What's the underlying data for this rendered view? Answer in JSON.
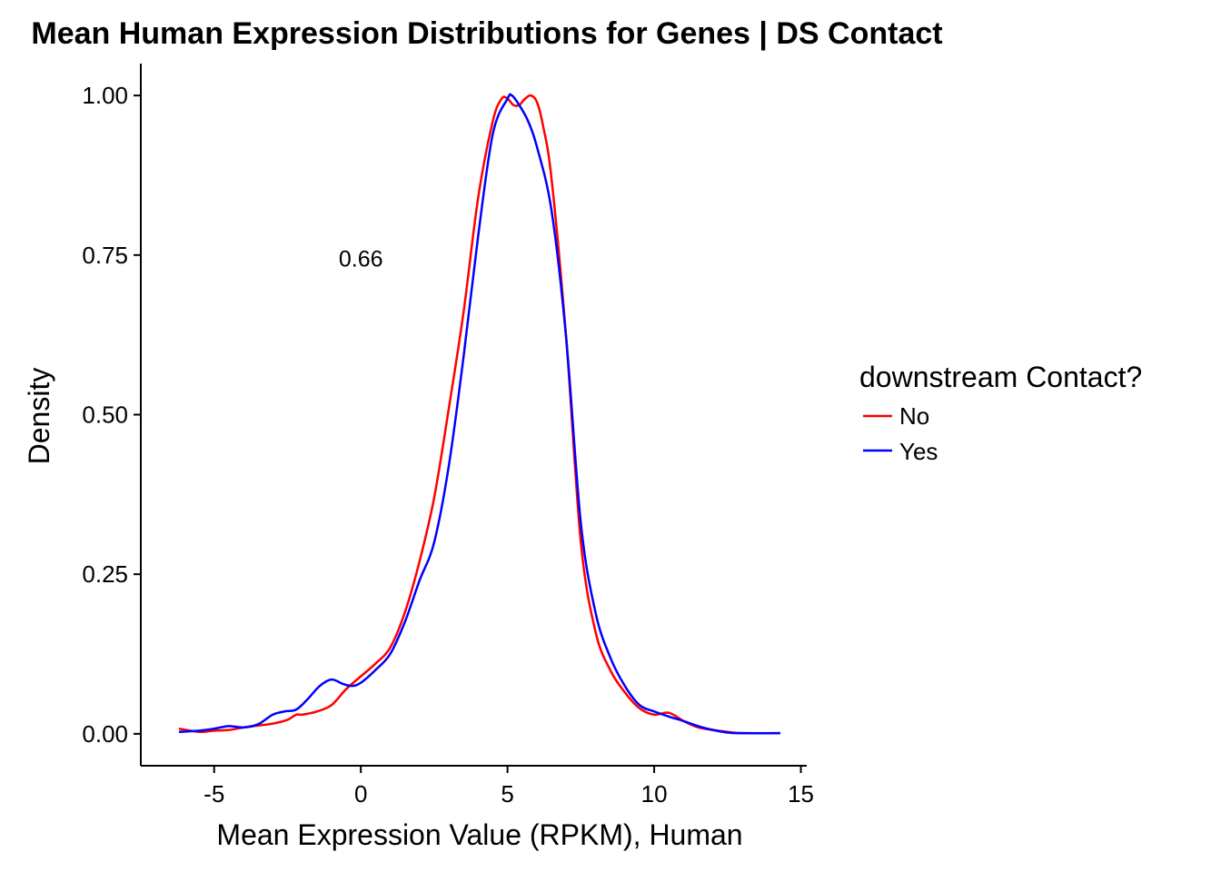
{
  "chart_data": {
    "type": "line",
    "title": "Mean Human Expression Distributions for Genes | DS Contact",
    "xlabel": "Mean Expression Value (RPKM), Human",
    "ylabel": "Density",
    "xlim": [
      -7.5,
      15.2
    ],
    "ylim": [
      -0.05,
      1.05
    ],
    "x_ticks": [
      -5,
      0,
      5,
      10,
      15
    ],
    "x_tick_labels": [
      "-5",
      "0",
      "5",
      "10",
      "15"
    ],
    "y_ticks": [
      0,
      0.25,
      0.5,
      0.75,
      1.0
    ],
    "y_tick_labels": [
      "0.00",
      "0.25",
      "0.50",
      "0.75",
      "1.00"
    ],
    "grid": false,
    "legend": {
      "title": "downstream Contact?",
      "placement": "right"
    },
    "annotations": [
      {
        "text": "0.66",
        "x": 0,
        "y": 0.745
      }
    ],
    "series": [
      {
        "name": "No",
        "color": "#ff0000",
        "x": [
          -6.2,
          -5.5,
          -5.0,
          -4.5,
          -4.0,
          -3.5,
          -3.0,
          -2.5,
          -2.2,
          -2.0,
          -1.5,
          -1.0,
          -0.5,
          0.0,
          0.5,
          1.0,
          1.5,
          2.0,
          2.5,
          3.0,
          3.5,
          4.0,
          4.5,
          4.8,
          5.0,
          5.2,
          5.4,
          5.6,
          5.8,
          6.0,
          6.2,
          6.5,
          7.0,
          7.5,
          8.0,
          8.5,
          9.0,
          9.5,
          10.0,
          10.5,
          11.0,
          11.5,
          12.0,
          12.5,
          13.0,
          14.3
        ],
        "y": [
          0.008,
          0.003,
          0.005,
          0.006,
          0.01,
          0.013,
          0.016,
          0.022,
          0.03,
          0.03,
          0.035,
          0.045,
          0.07,
          0.09,
          0.11,
          0.135,
          0.19,
          0.27,
          0.37,
          0.51,
          0.66,
          0.84,
          0.96,
          0.995,
          0.995,
          0.985,
          0.985,
          0.995,
          1.0,
          0.99,
          0.955,
          0.87,
          0.62,
          0.3,
          0.16,
          0.1,
          0.065,
          0.04,
          0.03,
          0.033,
          0.02,
          0.01,
          0.006,
          0.003,
          0.001,
          0.001
        ]
      },
      {
        "name": "Yes",
        "color": "#0000ff",
        "x": [
          -6.2,
          -5.5,
          -5.0,
          -4.5,
          -4.0,
          -3.5,
          -3.0,
          -2.6,
          -2.2,
          -1.8,
          -1.4,
          -1.0,
          -0.6,
          -0.3,
          0.0,
          0.5,
          1.0,
          1.5,
          2.0,
          2.5,
          3.0,
          3.5,
          4.0,
          4.5,
          5.0,
          5.15,
          5.4,
          5.7,
          6.0,
          6.5,
          7.0,
          7.5,
          8.0,
          8.5,
          9.0,
          9.5,
          10.0,
          10.5,
          11.0,
          11.5,
          12.0,
          12.5,
          13.0,
          14.3
        ],
        "y": [
          0.003,
          0.005,
          0.008,
          0.012,
          0.01,
          0.015,
          0.03,
          0.035,
          0.038,
          0.055,
          0.075,
          0.085,
          0.078,
          0.075,
          0.08,
          0.1,
          0.125,
          0.175,
          0.24,
          0.3,
          0.42,
          0.59,
          0.78,
          0.94,
          0.995,
          1.0,
          0.985,
          0.96,
          0.92,
          0.82,
          0.62,
          0.33,
          0.19,
          0.12,
          0.075,
          0.045,
          0.035,
          0.027,
          0.02,
          0.012,
          0.006,
          0.002,
          0.001,
          0.001
        ]
      }
    ]
  }
}
